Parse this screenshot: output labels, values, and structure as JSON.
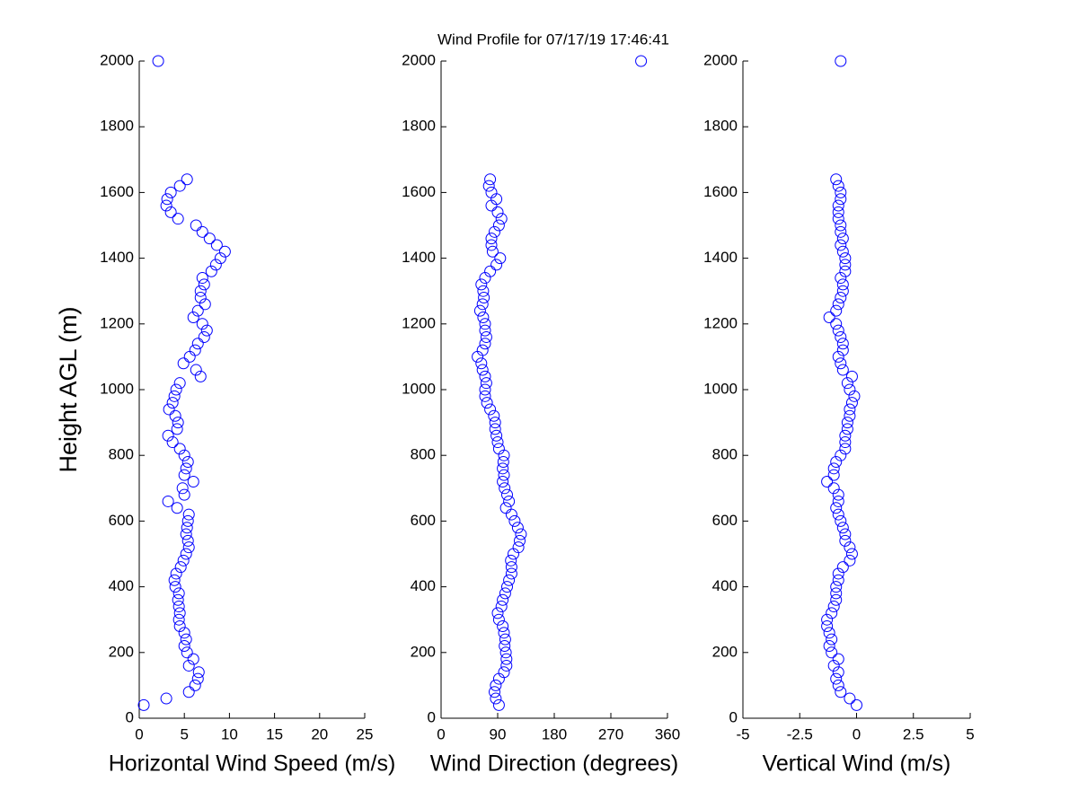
{
  "title": "Wind Profile for  07/17/19 17:46:41",
  "chart_data": [
    {
      "type": "scatter",
      "xlabel": "Horizontal Wind Speed (m/s)",
      "ylabel": "Height AGL (m)",
      "color": "#0000ff",
      "xlim": [
        0,
        25
      ],
      "xticks": [
        0,
        5,
        10,
        15,
        20,
        25
      ],
      "ylim": [
        0,
        2000
      ],
      "yticks": [
        0,
        200,
        400,
        600,
        800,
        1000,
        1200,
        1400,
        1600,
        1800,
        2000
      ],
      "x": [
        0.5,
        3.0,
        5.5,
        6.2,
        6.5,
        6.6,
        5.5,
        6.0,
        5.3,
        5.0,
        5.2,
        5.0,
        4.5,
        4.4,
        4.5,
        4.4,
        4.3,
        4.4,
        4.0,
        3.9,
        4.1,
        4.6,
        4.9,
        5.2,
        5.5,
        5.4,
        5.2,
        5.3,
        5.4,
        5.5,
        4.2,
        3.2,
        5.0,
        4.8,
        6.0,
        5.0,
        5.2,
        5.4,
        5.0,
        4.5,
        3.7,
        3.2,
        4.2,
        4.3,
        4.0,
        3.3,
        3.7,
        3.9,
        4.1,
        4.5,
        6.8,
        6.3,
        4.9,
        5.6,
        6.2,
        6.5,
        7.2,
        7.5,
        7.0,
        6.0,
        6.5,
        7.3,
        6.8,
        6.8,
        7.2,
        7.0,
        8.0,
        8.5,
        9.0,
        9.5,
        8.6,
        7.8,
        7.0,
        6.3,
        4.3,
        3.5,
        3.0,
        3.1,
        3.5,
        4.5,
        5.3,
        2.1
      ],
      "y": [
        40,
        60,
        80,
        100,
        120,
        140,
        160,
        180,
        200,
        220,
        240,
        260,
        280,
        300,
        320,
        340,
        360,
        380,
        400,
        420,
        440,
        460,
        480,
        500,
        520,
        540,
        560,
        580,
        600,
        620,
        640,
        660,
        680,
        700,
        720,
        740,
        760,
        780,
        800,
        820,
        840,
        860,
        880,
        900,
        920,
        940,
        960,
        980,
        1000,
        1020,
        1040,
        1060,
        1080,
        1100,
        1120,
        1140,
        1160,
        1180,
        1200,
        1220,
        1240,
        1260,
        1280,
        1300,
        1320,
        1340,
        1360,
        1380,
        1400,
        1420,
        1440,
        1460,
        1480,
        1500,
        1520,
        1540,
        1560,
        1580,
        1600,
        1620,
        1640,
        2000
      ]
    },
    {
      "type": "scatter",
      "xlabel": "Wind Direction (degrees)",
      "color": "#0000ff",
      "xlim": [
        0,
        360
      ],
      "xticks": [
        0,
        90,
        180,
        270,
        360
      ],
      "ylim": [
        0,
        2000
      ],
      "yticks": [
        0,
        200,
        400,
        600,
        800,
        1000,
        1200,
        1400,
        1600,
        1800,
        2000
      ],
      "x": [
        92,
        87,
        85,
        87,
        92,
        100,
        104,
        104,
        103,
        101,
        102,
        100,
        98,
        92,
        90,
        96,
        98,
        102,
        105,
        108,
        112,
        112,
        111,
        115,
        123,
        125,
        127,
        122,
        117,
        112,
        103,
        108,
        105,
        101,
        98,
        100,
        98,
        99,
        100,
        92,
        90,
        88,
        86,
        86,
        84,
        78,
        73,
        70,
        70,
        72,
        70,
        66,
        64,
        58,
        66,
        70,
        72,
        70,
        70,
        67,
        62,
        66,
        68,
        67,
        64,
        70,
        78,
        88,
        94,
        82,
        80,
        80,
        85,
        92,
        96,
        90,
        80,
        88,
        80,
        76,
        78,
        318
      ],
      "y": [
        40,
        60,
        80,
        100,
        120,
        140,
        160,
        180,
        200,
        220,
        240,
        260,
        280,
        300,
        320,
        340,
        360,
        380,
        400,
        420,
        440,
        460,
        480,
        500,
        520,
        540,
        560,
        580,
        600,
        620,
        640,
        660,
        680,
        700,
        720,
        740,
        760,
        780,
        800,
        820,
        840,
        860,
        880,
        900,
        920,
        940,
        960,
        980,
        1000,
        1020,
        1040,
        1060,
        1080,
        1100,
        1120,
        1140,
        1160,
        1180,
        1200,
        1220,
        1240,
        1260,
        1280,
        1300,
        1320,
        1340,
        1360,
        1380,
        1400,
        1420,
        1440,
        1460,
        1480,
        1500,
        1520,
        1540,
        1560,
        1580,
        1600,
        1620,
        1640,
        2000
      ]
    },
    {
      "type": "scatter",
      "xlabel": "Vertical Wind (m/s)",
      "color": "#0000ff",
      "xlim": [
        -5,
        5
      ],
      "xticks": [
        -5,
        -2.5,
        0,
        2.5,
        5
      ],
      "ylim": [
        0,
        2000
      ],
      "yticks": [
        0,
        200,
        400,
        600,
        800,
        1000,
        1200,
        1400,
        1600,
        1800,
        2000
      ],
      "x": [
        0,
        -0.3,
        -0.7,
        -0.8,
        -0.9,
        -0.8,
        -1.0,
        -0.8,
        -1.1,
        -1.2,
        -1.1,
        -1.2,
        -1.3,
        -1.3,
        -1.1,
        -1.0,
        -0.9,
        -0.9,
        -0.9,
        -0.8,
        -0.8,
        -0.6,
        -0.3,
        -0.2,
        -0.3,
        -0.5,
        -0.5,
        -0.6,
        -0.7,
        -0.8,
        -0.9,
        -0.8,
        -0.8,
        -1.0,
        -1.3,
        -1.0,
        -1.0,
        -0.9,
        -0.7,
        -0.5,
        -0.5,
        -0.5,
        -0.4,
        -0.4,
        -0.3,
        -0.3,
        -0.2,
        -0.1,
        -0.3,
        -0.4,
        -0.2,
        -0.6,
        -0.7,
        -0.8,
        -0.6,
        -0.6,
        -0.7,
        -0.8,
        -0.9,
        -1.2,
        -0.9,
        -0.8,
        -0.7,
        -0.6,
        -0.6,
        -0.7,
        -0.5,
        -0.5,
        -0.5,
        -0.6,
        -0.7,
        -0.6,
        -0.7,
        -0.7,
        -0.8,
        -0.8,
        -0.8,
        -0.7,
        -0.7,
        -0.8,
        -0.9,
        -0.7
      ],
      "y": [
        40,
        60,
        80,
        100,
        120,
        140,
        160,
        180,
        200,
        220,
        240,
        260,
        280,
        300,
        320,
        340,
        360,
        380,
        400,
        420,
        440,
        460,
        480,
        500,
        520,
        540,
        560,
        580,
        600,
        620,
        640,
        660,
        680,
        700,
        720,
        740,
        760,
        780,
        800,
        820,
        840,
        860,
        880,
        900,
        920,
        940,
        960,
        980,
        1000,
        1020,
        1040,
        1060,
        1080,
        1100,
        1120,
        1140,
        1160,
        1180,
        1200,
        1220,
        1240,
        1260,
        1280,
        1300,
        1320,
        1340,
        1360,
        1380,
        1400,
        1420,
        1440,
        1460,
        1480,
        1500,
        1520,
        1540,
        1560,
        1580,
        1600,
        1620,
        1640,
        2000
      ]
    }
  ]
}
